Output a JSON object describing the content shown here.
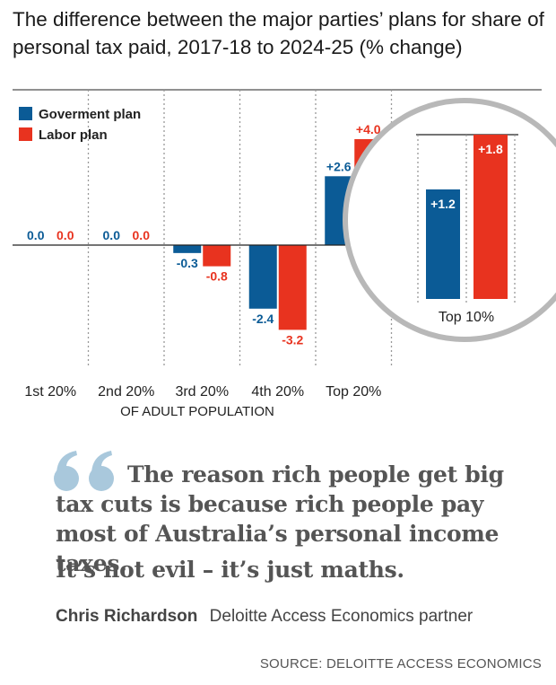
{
  "title": "The difference between the major parties’ plans for share of personal tax paid, 2017-18 to 2024-25 (% change)",
  "colors": {
    "government": "#0b5b96",
    "labor": "#e8331f",
    "circle": "#b8b8b8",
    "grid": "#999999"
  },
  "chart_data": [
    {
      "type": "bar",
      "title": "The difference between the major parties’ plans for share of personal tax paid, 2017-18 to 2024-25 (% change)",
      "xlabel": "OF ADULT POPULATION",
      "ylabel": "",
      "categories": [
        "1st 20%",
        "2nd 20%",
        "3rd 20%",
        "4th 20%",
        "Top 20%"
      ],
      "series": [
        {
          "name": "Goverment plan",
          "values": [
            0.0,
            0.0,
            -0.3,
            -2.4,
            2.6
          ],
          "labels": [
            "0.0",
            "0.0",
            "-0.3",
            "-2.4",
            "+2.6"
          ]
        },
        {
          "name": "Labor plan",
          "values": [
            0.0,
            0.0,
            -0.8,
            -3.2,
            4.0
          ],
          "labels": [
            "0.0",
            "0.0",
            "-0.8",
            "-3.2",
            "+4.0"
          ]
        }
      ],
      "ylim": [
        -4.2,
        4.3
      ],
      "grid": false,
      "legend": "top-left"
    },
    {
      "type": "bar",
      "categories": [
        "Top 10%"
      ],
      "series": [
        {
          "name": "Goverment plan",
          "values": [
            1.2
          ],
          "labels": [
            "+1.2"
          ]
        },
        {
          "name": "Labor plan",
          "values": [
            1.8
          ],
          "labels": [
            "+1.8"
          ]
        }
      ],
      "ylim": [
        0,
        1.8
      ]
    }
  ],
  "quote": {
    "line1": "The reason rich people get big tax cuts is because rich people pay most of Australia’s personal income taxes.",
    "line2": "It’s not evil – it’s just maths."
  },
  "attribution": {
    "name": "Chris Richardson",
    "role": "Deloitte Access Economics partner"
  },
  "source": "SOURCE: DELOITTE ACCESS ECONOMICS"
}
